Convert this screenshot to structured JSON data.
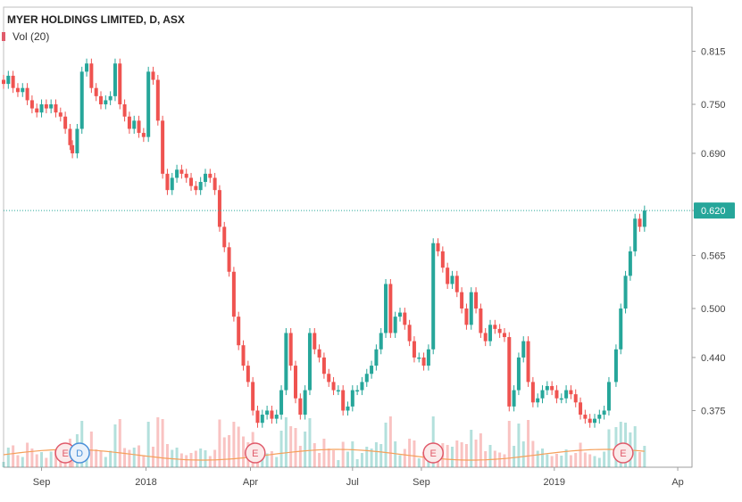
{
  "chart_data": {
    "type": "candlestick",
    "title": "MYER HOLDINGS LIMITED, D, ASX",
    "volume_label": "Vol (20)",
    "y_ticks": [
      "0.815",
      "0.750",
      "0.690",
      "0.620",
      "0.565",
      "0.500",
      "0.440",
      "0.375"
    ],
    "y_tick_values": [
      0.815,
      0.75,
      0.69,
      0.62,
      0.565,
      0.5,
      0.44,
      0.375
    ],
    "ylim": [
      0.31,
      0.845
    ],
    "x_ticks": [
      "Sep",
      "2018",
      "Apr",
      "Jul",
      "Sep",
      "2019",
      "Ap"
    ],
    "x_tick_positions": [
      16,
      60,
      104,
      147,
      176,
      232,
      284
    ],
    "x_range": [
      0,
      290
    ],
    "last_price": "0.620",
    "last_price_value": 0.62,
    "colors": {
      "up": "#26a69a",
      "down": "#ef5350",
      "price_line": "#26a69a",
      "volume_ma": "#f5a05a"
    },
    "events": [
      {
        "label": "E",
        "x": 26,
        "kind": "earnings"
      },
      {
        "label": "D",
        "x": 32,
        "kind": "dividend"
      },
      {
        "label": "E",
        "x": 106,
        "kind": "earnings"
      },
      {
        "label": "E",
        "x": 181,
        "kind": "earnings"
      },
      {
        "label": "E",
        "x": 261,
        "kind": "earnings"
      }
    ],
    "series": [
      {
        "x": 0,
        "close": 0.775
      },
      {
        "x": 2,
        "close": 0.785
      },
      {
        "x": 4,
        "close": 0.77
      },
      {
        "x": 6,
        "close": 0.765
      },
      {
        "x": 8,
        "close": 0.77
      },
      {
        "x": 10,
        "close": 0.755
      },
      {
        "x": 12,
        "close": 0.745
      },
      {
        "x": 14,
        "close": 0.74
      },
      {
        "x": 16,
        "close": 0.75
      },
      {
        "x": 18,
        "close": 0.745
      },
      {
        "x": 20,
        "close": 0.75
      },
      {
        "x": 22,
        "close": 0.74
      },
      {
        "x": 24,
        "close": 0.735
      },
      {
        "x": 26,
        "close": 0.72
      },
      {
        "x": 28,
        "close": 0.7
      },
      {
        "x": 29,
        "close": 0.69
      },
      {
        "x": 31,
        "close": 0.72
      },
      {
        "x": 33,
        "close": 0.79
      },
      {
        "x": 35,
        "close": 0.8
      },
      {
        "x": 37,
        "close": 0.77
      },
      {
        "x": 39,
        "close": 0.76
      },
      {
        "x": 41,
        "close": 0.75
      },
      {
        "x": 43,
        "close": 0.755
      },
      {
        "x": 45,
        "close": 0.76
      },
      {
        "x": 47,
        "close": 0.8
      },
      {
        "x": 49,
        "close": 0.75
      },
      {
        "x": 51,
        "close": 0.735
      },
      {
        "x": 53,
        "close": 0.72
      },
      {
        "x": 55,
        "close": 0.73
      },
      {
        "x": 57,
        "close": 0.715
      },
      {
        "x": 59,
        "close": 0.71
      },
      {
        "x": 61,
        "close": 0.79
      },
      {
        "x": 63,
        "close": 0.78
      },
      {
        "x": 65,
        "close": 0.73
      },
      {
        "x": 67,
        "close": 0.665
      },
      {
        "x": 69,
        "close": 0.645
      },
      {
        "x": 71,
        "close": 0.66
      },
      {
        "x": 73,
        "close": 0.67
      },
      {
        "x": 75,
        "close": 0.665
      },
      {
        "x": 77,
        "close": 0.66
      },
      {
        "x": 79,
        "close": 0.65
      },
      {
        "x": 81,
        "close": 0.645
      },
      {
        "x": 83,
        "close": 0.655
      },
      {
        "x": 85,
        "close": 0.665
      },
      {
        "x": 87,
        "close": 0.66
      },
      {
        "x": 89,
        "close": 0.645
      },
      {
        "x": 91,
        "close": 0.6
      },
      {
        "x": 93,
        "close": 0.575
      },
      {
        "x": 95,
        "close": 0.545
      },
      {
        "x": 97,
        "close": 0.49
      },
      {
        "x": 99,
        "close": 0.455
      },
      {
        "x": 101,
        "close": 0.43
      },
      {
        "x": 103,
        "close": 0.41
      },
      {
        "x": 105,
        "close": 0.375
      },
      {
        "x": 107,
        "close": 0.36
      },
      {
        "x": 109,
        "close": 0.37
      },
      {
        "x": 111,
        "close": 0.375
      },
      {
        "x": 113,
        "close": 0.365
      },
      {
        "x": 115,
        "close": 0.37
      },
      {
        "x": 117,
        "close": 0.4
      },
      {
        "x": 119,
        "close": 0.47
      },
      {
        "x": 121,
        "close": 0.43
      },
      {
        "x": 123,
        "close": 0.39
      },
      {
        "x": 125,
        "close": 0.37
      },
      {
        "x": 127,
        "close": 0.4
      },
      {
        "x": 129,
        "close": 0.47
      },
      {
        "x": 131,
        "close": 0.45
      },
      {
        "x": 133,
        "close": 0.44
      },
      {
        "x": 135,
        "close": 0.42
      },
      {
        "x": 137,
        "close": 0.41
      },
      {
        "x": 139,
        "close": 0.4
      },
      {
        "x": 141,
        "close": 0.4
      },
      {
        "x": 143,
        "close": 0.375
      },
      {
        "x": 145,
        "close": 0.38
      },
      {
        "x": 147,
        "close": 0.4
      },
      {
        "x": 149,
        "close": 0.4
      },
      {
        "x": 151,
        "close": 0.41
      },
      {
        "x": 153,
        "close": 0.42
      },
      {
        "x": 155,
        "close": 0.43
      },
      {
        "x": 157,
        "close": 0.45
      },
      {
        "x": 159,
        "close": 0.47
      },
      {
        "x": 161,
        "close": 0.53
      },
      {
        "x": 163,
        "close": 0.47
      },
      {
        "x": 165,
        "close": 0.49
      },
      {
        "x": 167,
        "close": 0.495
      },
      {
        "x": 169,
        "close": 0.48
      },
      {
        "x": 171,
        "close": 0.46
      },
      {
        "x": 173,
        "close": 0.44
      },
      {
        "x": 175,
        "close": 0.44
      },
      {
        "x": 177,
        "close": 0.43
      },
      {
        "x": 179,
        "close": 0.45
      },
      {
        "x": 181,
        "close": 0.58
      },
      {
        "x": 183,
        "close": 0.57
      },
      {
        "x": 185,
        "close": 0.55
      },
      {
        "x": 187,
        "close": 0.53
      },
      {
        "x": 189,
        "close": 0.54
      },
      {
        "x": 191,
        "close": 0.52
      },
      {
        "x": 193,
        "close": 0.5
      },
      {
        "x": 195,
        "close": 0.48
      },
      {
        "x": 197,
        "close": 0.52
      },
      {
        "x": 199,
        "close": 0.5
      },
      {
        "x": 201,
        "close": 0.47
      },
      {
        "x": 203,
        "close": 0.46
      },
      {
        "x": 205,
        "close": 0.48
      },
      {
        "x": 207,
        "close": 0.475
      },
      {
        "x": 209,
        "close": 0.47
      },
      {
        "x": 211,
        "close": 0.465
      },
      {
        "x": 213,
        "close": 0.38
      },
      {
        "x": 215,
        "close": 0.4
      },
      {
        "x": 217,
        "close": 0.44
      },
      {
        "x": 219,
        "close": 0.46
      },
      {
        "x": 221,
        "close": 0.41
      },
      {
        "x": 223,
        "close": 0.385
      },
      {
        "x": 225,
        "close": 0.39
      },
      {
        "x": 227,
        "close": 0.4
      },
      {
        "x": 229,
        "close": 0.405
      },
      {
        "x": 231,
        "close": 0.4
      },
      {
        "x": 233,
        "close": 0.39
      },
      {
        "x": 235,
        "close": 0.39
      },
      {
        "x": 237,
        "close": 0.4
      },
      {
        "x": 239,
        "close": 0.395
      },
      {
        "x": 241,
        "close": 0.385
      },
      {
        "x": 243,
        "close": 0.37
      },
      {
        "x": 245,
        "close": 0.365
      },
      {
        "x": 247,
        "close": 0.36
      },
      {
        "x": 249,
        "close": 0.365
      },
      {
        "x": 251,
        "close": 0.37
      },
      {
        "x": 253,
        "close": 0.375
      },
      {
        "x": 255,
        "close": 0.41
      },
      {
        "x": 258,
        "close": 0.45
      },
      {
        "x": 260,
        "close": 0.5
      },
      {
        "x": 262,
        "close": 0.54
      },
      {
        "x": 264,
        "close": 0.57
      },
      {
        "x": 266,
        "close": 0.61
      },
      {
        "x": 268,
        "close": 0.6
      },
      {
        "x": 270,
        "close": 0.62
      }
    ]
  }
}
